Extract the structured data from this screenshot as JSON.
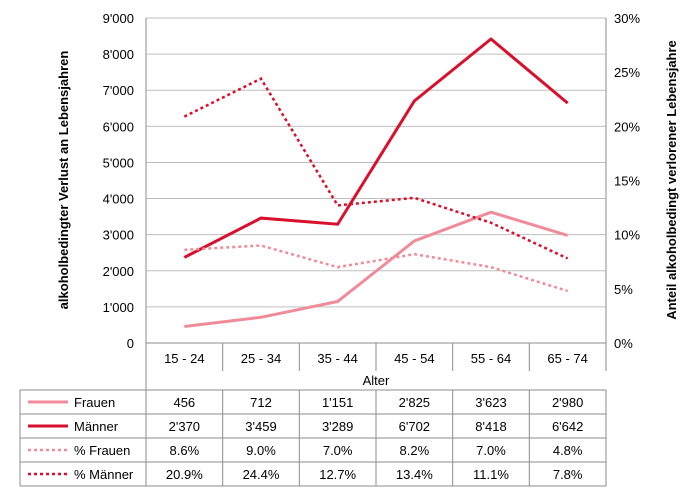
{
  "chart_data": {
    "type": "line",
    "categories": [
      "15 - 24",
      "25 - 34",
      "35 - 44",
      "45 - 54",
      "55 - 64",
      "65 - 74"
    ],
    "xlabel": "Alter",
    "ylabel": "alkoholbedingter Verlust an Lebensjahren",
    "y2label": "Anteil alkoholbedingt verlorener Lebensjahre",
    "ylim": [
      0,
      9000
    ],
    "y2lim": [
      0,
      30
    ],
    "yticks": [
      "0",
      "1'000",
      "2'000",
      "3'000",
      "4'000",
      "5'000",
      "6'000",
      "7'000",
      "8'000",
      "9'000"
    ],
    "y2ticks": [
      "0%",
      "5%",
      "10%",
      "15%",
      "20%",
      "25%",
      "30%"
    ],
    "grid": true,
    "legend": "table below chart",
    "series": [
      {
        "name": "Frauen",
        "axis": "left",
        "style": "solid",
        "color": "#f08c9a",
        "values": [
          456,
          712,
          1151,
          2825,
          3623,
          2980
        ],
        "labels": [
          "456",
          "712",
          "1'151",
          "2'825",
          "3'623",
          "2'980"
        ]
      },
      {
        "name": "Männer",
        "axis": "left",
        "style": "solid",
        "color": "#d9102c",
        "values": [
          2370,
          3459,
          3289,
          6702,
          8418,
          6642
        ],
        "labels": [
          "2'370",
          "3'459",
          "3'289",
          "6'702",
          "8'418",
          "6'642"
        ]
      },
      {
        "name": "% Frauen",
        "axis": "right",
        "style": "dotted",
        "color": "#f08c9a",
        "values": [
          8.6,
          9.0,
          7.0,
          8.2,
          7.0,
          4.8
        ],
        "labels": [
          "8.6%",
          "9.0%",
          "7.0%",
          "8.2%",
          "7.0%",
          "4.8%"
        ]
      },
      {
        "name": "% Männer",
        "axis": "right",
        "style": "dotted",
        "color": "#d9102c",
        "values": [
          20.9,
          24.4,
          12.7,
          13.4,
          11.1,
          7.8
        ],
        "labels": [
          "20.9%",
          "24.4%",
          "12.7%",
          "13.4%",
          "11.1%",
          "7.8%"
        ]
      }
    ]
  }
}
